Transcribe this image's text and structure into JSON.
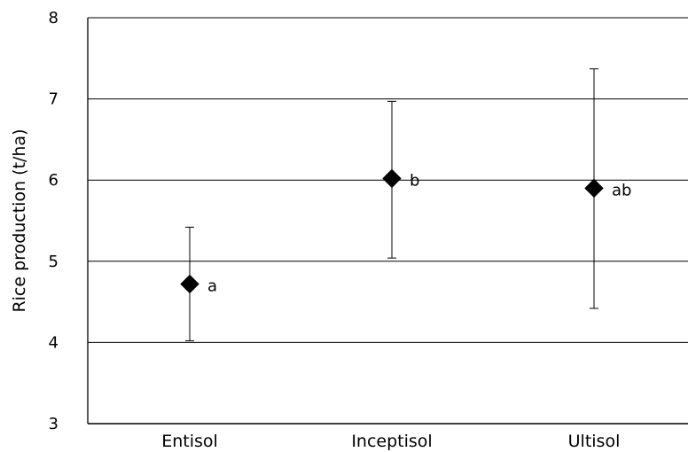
{
  "chart_data": {
    "type": "scatter",
    "title": "",
    "xlabel": "",
    "ylabel": "Rice production (t/ha)",
    "ylim": [
      3,
      8
    ],
    "yticks": [
      "3",
      "4",
      "5",
      "6",
      "7",
      "8"
    ],
    "grid": true,
    "categories": [
      "Entisol",
      "Inceptisol",
      "Ultisol"
    ],
    "series": [
      {
        "marker": "diamond",
        "values": [
          4.72,
          6.02,
          5.9
        ],
        "error_low": [
          4.02,
          5.04,
          4.42
        ],
        "error_high": [
          5.42,
          6.97,
          7.37
        ],
        "labels": [
          "a",
          "b",
          "ab"
        ]
      }
    ]
  }
}
